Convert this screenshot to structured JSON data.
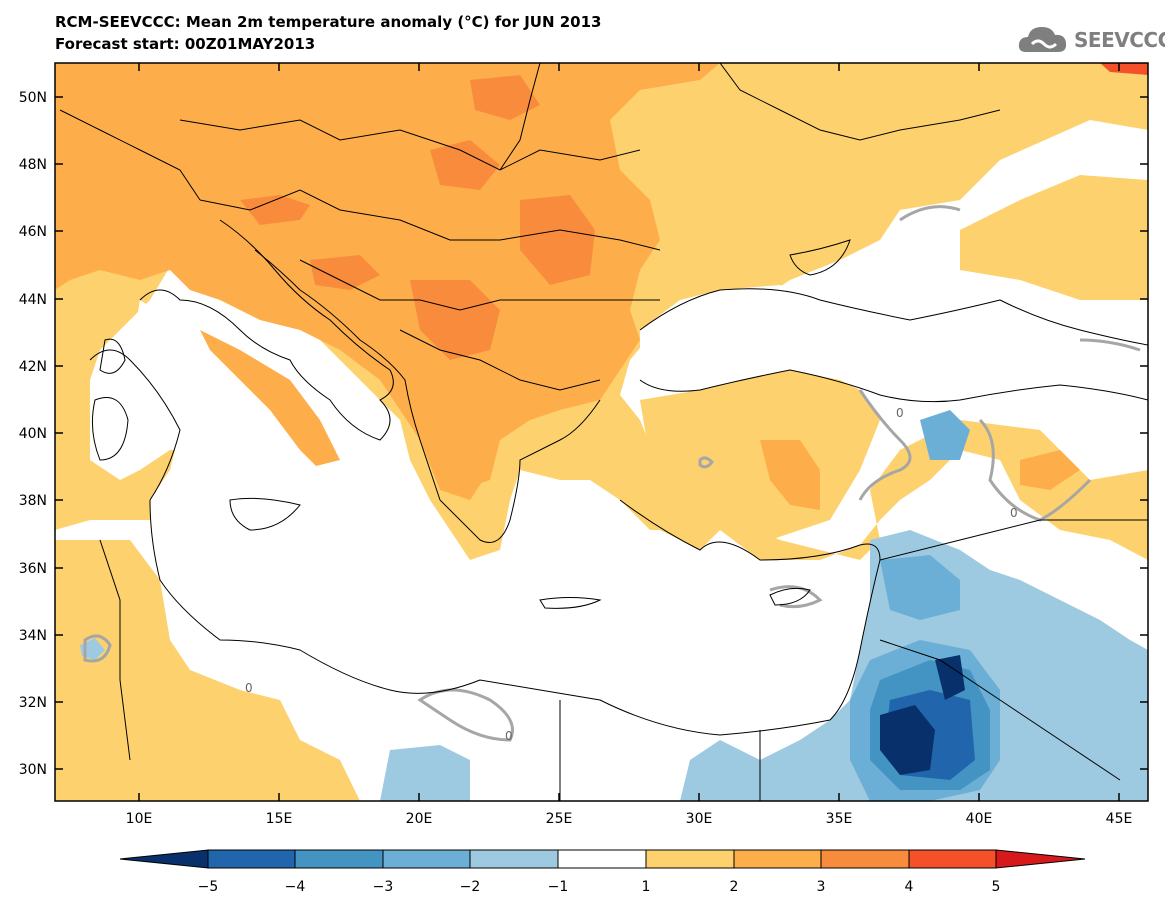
{
  "header": {
    "title": "RCM-SEEVCCC: Mean 2m temperature anomaly (°C) for JUN 2013",
    "subtitle": "Forecast start: 00Z01MAY2013"
  },
  "logo": {
    "text": "SEEVCCC"
  },
  "map": {
    "lon_range": [
      7,
      46
    ],
    "lat_range": [
      29,
      51
    ],
    "lat_ticks": [
      "50N",
      "48N",
      "46N",
      "44N",
      "42N",
      "40N",
      "38N",
      "36N",
      "34N",
      "32N",
      "30N"
    ],
    "lon_ticks": [
      "10E",
      "15E",
      "20E",
      "25E",
      "30E",
      "35E",
      "40E",
      "45E"
    ],
    "contour_label": "0"
  },
  "colorbar": {
    "labels": [
      "−5",
      "−4",
      "−3",
      "−2",
      "−1",
      "1",
      "2",
      "3",
      "4",
      "5"
    ],
    "colors": [
      "#08306b",
      "#2166ac",
      "#4393c3",
      "#6baed6",
      "#9ecae1",
      "#ffffff",
      "#fdd26e",
      "#fdae4b",
      "#f98c3c",
      "#f4502a",
      "#d7191c"
    ]
  },
  "palette": {
    "warm1": "#fdd26e",
    "warm2": "#fdae4b",
    "warm3": "#f98c3c",
    "warm4": "#f4502a",
    "cool1": "#9ecae1",
    "cool2": "#6baed6",
    "cool3": "#4393c3",
    "cool4": "#2166ac",
    "cool5": "#08306b",
    "contour": "#a6a6a6"
  }
}
